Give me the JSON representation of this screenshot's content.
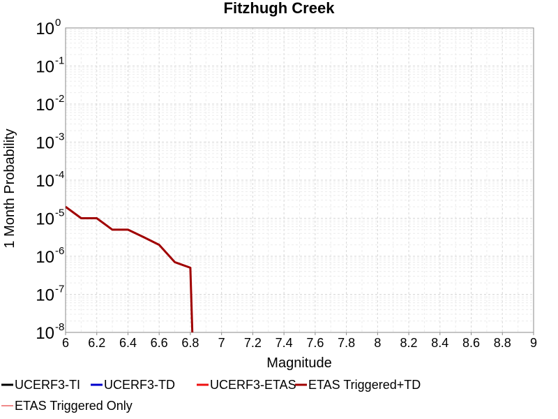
{
  "chart_data": {
    "type": "line",
    "title": "Fitzhugh Creek",
    "xlabel": "Magnitude",
    "ylabel": "1 Month Probability",
    "xlim": [
      6,
      9
    ],
    "ylim": [
      1e-08,
      1
    ],
    "yscale": "log",
    "grid": true,
    "x_ticks": [
      "6",
      "6.2",
      "6.4",
      "6.6",
      "6.8",
      "7",
      "7.2",
      "7.4",
      "7.6",
      "7.8",
      "8",
      "8.2",
      "8.4",
      "8.6",
      "8.8",
      "9"
    ],
    "y_ticks": [
      {
        "base": "10",
        "exp": "0"
      },
      {
        "base": "10",
        "exp": "-1"
      },
      {
        "base": "10",
        "exp": "-2"
      },
      {
        "base": "10",
        "exp": "-3"
      },
      {
        "base": "10",
        "exp": "-4"
      },
      {
        "base": "10",
        "exp": "-5"
      },
      {
        "base": "10",
        "exp": "-6"
      },
      {
        "base": "10",
        "exp": "-7"
      },
      {
        "base": "10",
        "exp": "-8"
      }
    ],
    "series": [
      {
        "name": "UCERF3-TI",
        "color": "#000000",
        "x": [],
        "y": []
      },
      {
        "name": "UCERF3-TD",
        "color": "#0000cc",
        "x": [],
        "y": []
      },
      {
        "name": "UCERF3-ETAS",
        "color": "#ee1111",
        "x": [],
        "y": []
      },
      {
        "name": "ETAS Triggered+TD",
        "color": "#a00000",
        "x": [
          6.0,
          6.1,
          6.2,
          6.3,
          6.4,
          6.5,
          6.6,
          6.7,
          6.8,
          6.82
        ],
        "y": [
          2e-05,
          1e-05,
          1e-05,
          5e-06,
          5e-06,
          3.2e-06,
          2e-06,
          7e-07,
          5e-07,
          1e-09
        ]
      },
      {
        "name": "ETAS Triggered Only",
        "color": "#f08a8a",
        "x": [],
        "y": []
      }
    ],
    "legend_position": "bottom"
  }
}
